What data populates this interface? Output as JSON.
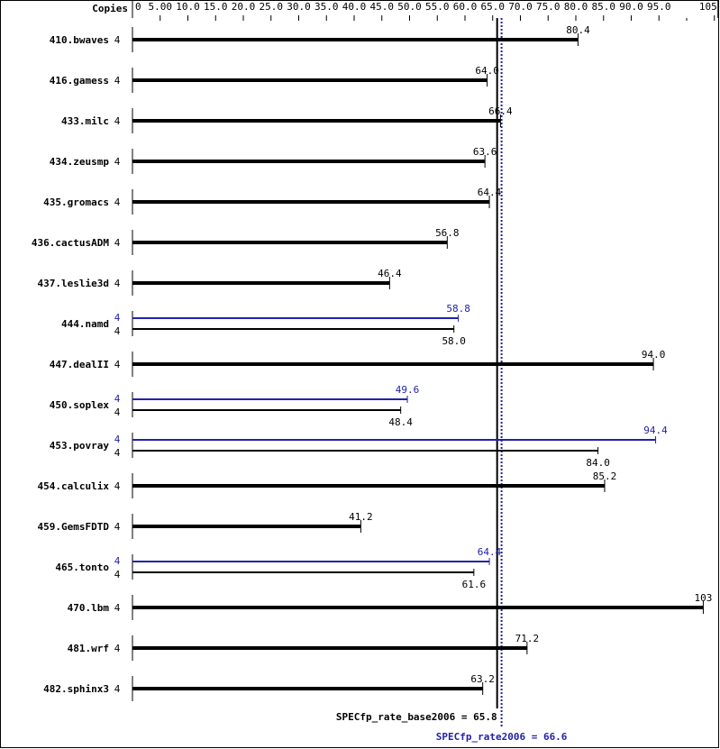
{
  "chart_data": {
    "type": "bar",
    "orientation": "horizontal",
    "copies_header": "Copies",
    "xlim": [
      0,
      105
    ],
    "x_ticks": [
      "0",
      "5.00",
      "10.0",
      "15.0",
      "20.0",
      "25.0",
      "30.0",
      "35.0",
      "40.0",
      "45.0",
      "50.0",
      "55.0",
      "60.0",
      "65.0",
      "70.0",
      "75.0",
      "80.0",
      "85.0",
      "90.0",
      "95.0",
      "105"
    ],
    "x_tick_values": [
      0,
      5,
      10,
      15,
      20,
      25,
      30,
      35,
      40,
      45,
      50,
      55,
      60,
      65,
      70,
      75,
      80,
      85,
      90,
      95,
      105
    ],
    "x_unlabeled_tick_values": [
      100
    ],
    "grid": false,
    "colors": {
      "base": "#000000",
      "peak": "#2222aa"
    },
    "benchmarks": [
      {
        "name": "410.bwaves",
        "base_copies": "4",
        "base": 80.4,
        "base_label": "80.4"
      },
      {
        "name": "416.gamess",
        "base_copies": "4",
        "base": 64.0,
        "base_label": "64.0"
      },
      {
        "name": "433.milc",
        "base_copies": "4",
        "base": 66.4,
        "base_label": "66.4"
      },
      {
        "name": "434.zeusmp",
        "base_copies": "4",
        "base": 63.6,
        "base_label": "63.6"
      },
      {
        "name": "435.gromacs",
        "base_copies": "4",
        "base": 64.4,
        "base_label": "64.4"
      },
      {
        "name": "436.cactusADM",
        "base_copies": "4",
        "base": 56.8,
        "base_label": "56.8"
      },
      {
        "name": "437.leslie3d",
        "base_copies": "4",
        "base": 46.4,
        "base_label": "46.4"
      },
      {
        "name": "444.namd",
        "peak_copies": "4",
        "peak": 58.8,
        "peak_label": "58.8",
        "base_copies": "4",
        "base": 58.0,
        "base_label": "58.0"
      },
      {
        "name": "447.dealII",
        "base_copies": "4",
        "base": 94.0,
        "base_label": "94.0"
      },
      {
        "name": "450.soplex",
        "peak_copies": "4",
        "peak": 49.6,
        "peak_label": "49.6",
        "base_copies": "4",
        "base": 48.4,
        "base_label": "48.4"
      },
      {
        "name": "453.povray",
        "peak_copies": "4",
        "peak": 94.4,
        "peak_label": "94.4",
        "base_copies": "4",
        "base": 84.0,
        "base_label": "84.0"
      },
      {
        "name": "454.calculix",
        "base_copies": "4",
        "base": 85.2,
        "base_label": "85.2"
      },
      {
        "name": "459.GemsFDTD",
        "base_copies": "4",
        "base": 41.2,
        "base_label": "41.2"
      },
      {
        "name": "465.tonto",
        "peak_copies": "4",
        "peak": 64.4,
        "peak_label": "64.4",
        "base_copies": "4",
        "base": 61.6,
        "base_label": "61.6"
      },
      {
        "name": "470.lbm",
        "base_copies": "4",
        "base": 103,
        "base_label": "103"
      },
      {
        "name": "481.wrf",
        "base_copies": "4",
        "base": 71.2,
        "base_label": "71.2"
      },
      {
        "name": "482.sphinx3",
        "base_copies": "4",
        "base": 63.2,
        "base_label": "63.2"
      }
    ],
    "base_mean": {
      "label": "SPECfp_rate_base2006 = 65.8",
      "value": 65.8
    },
    "peak_mean": {
      "label": "SPECfp_rate2006 = 66.6",
      "value": 66.6
    }
  }
}
